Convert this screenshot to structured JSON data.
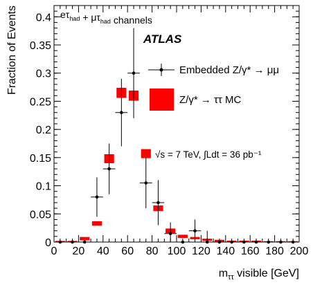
{
  "chart_data": {
    "type": "scatter",
    "channel_label": "eτ_had + μτ_had channels",
    "experiment": "ATLAS",
    "energy_text": "√s = 7 TeV, ∫Ldt = 36 pb⁻¹",
    "xlabel": "m_ττ visible [GeV]",
    "ylabel": "Fraction of Events",
    "xlim": [
      0,
      200
    ],
    "ylim": [
      0,
      0.42
    ],
    "x_ticks": [
      "0",
      "20",
      "40",
      "60",
      "80",
      "100",
      "120",
      "140",
      "160",
      "180",
      "200"
    ],
    "y_ticks": [
      "0",
      "0.05",
      "0.1",
      "0.15",
      "0.2",
      "0.25",
      "0.3",
      "0.35",
      "0.4"
    ],
    "series": [
      {
        "name": "Embedded Z/γ* → μμ",
        "style": "points",
        "color": "#000000",
        "x": [
          5,
          15,
          25,
          35,
          45,
          55,
          65,
          75,
          85,
          95,
          105,
          115,
          125,
          135,
          145,
          155,
          165,
          175,
          185,
          195
        ],
        "y": [
          0.0,
          0.0,
          0.0,
          0.08,
          0.13,
          0.23,
          0.3,
          0.105,
          0.07,
          0.015,
          0.0,
          0.02,
          0.0,
          0.0,
          0.0,
          0.0,
          0.0,
          0.0,
          0.0,
          0.0
        ],
        "err": [
          0.0,
          0.0,
          0.0,
          0.035,
          0.045,
          0.06,
          0.08,
          0.045,
          0.04,
          0.02,
          0.0,
          0.02,
          0.02,
          0.0,
          0.0,
          0.0,
          0.0,
          0.0,
          0.0,
          0.0
        ]
      },
      {
        "name": "Z/γ* → ττ MC",
        "style": "boxes",
        "color": "#ff0000",
        "x": [
          5,
          15,
          25,
          35,
          45,
          55,
          65,
          75,
          85,
          95,
          105,
          115,
          125,
          135,
          145,
          155,
          165,
          175,
          185,
          195
        ],
        "y": [
          0.0,
          0.0,
          0.006,
          0.033,
          0.148,
          0.265,
          0.26,
          0.157,
          0.06,
          0.02,
          0.01,
          0.007,
          0.004,
          0.002,
          0.001,
          0.001,
          0.001,
          0.0,
          0.0,
          0.0
        ],
        "err": [
          0.002,
          0.002,
          0.003,
          0.004,
          0.008,
          0.009,
          0.009,
          0.008,
          0.005,
          0.004,
          0.003,
          0.002,
          0.002,
          0.002,
          0.001,
          0.001,
          0.001,
          0.001,
          0.001,
          0.001
        ]
      }
    ],
    "legend_position": "right"
  }
}
